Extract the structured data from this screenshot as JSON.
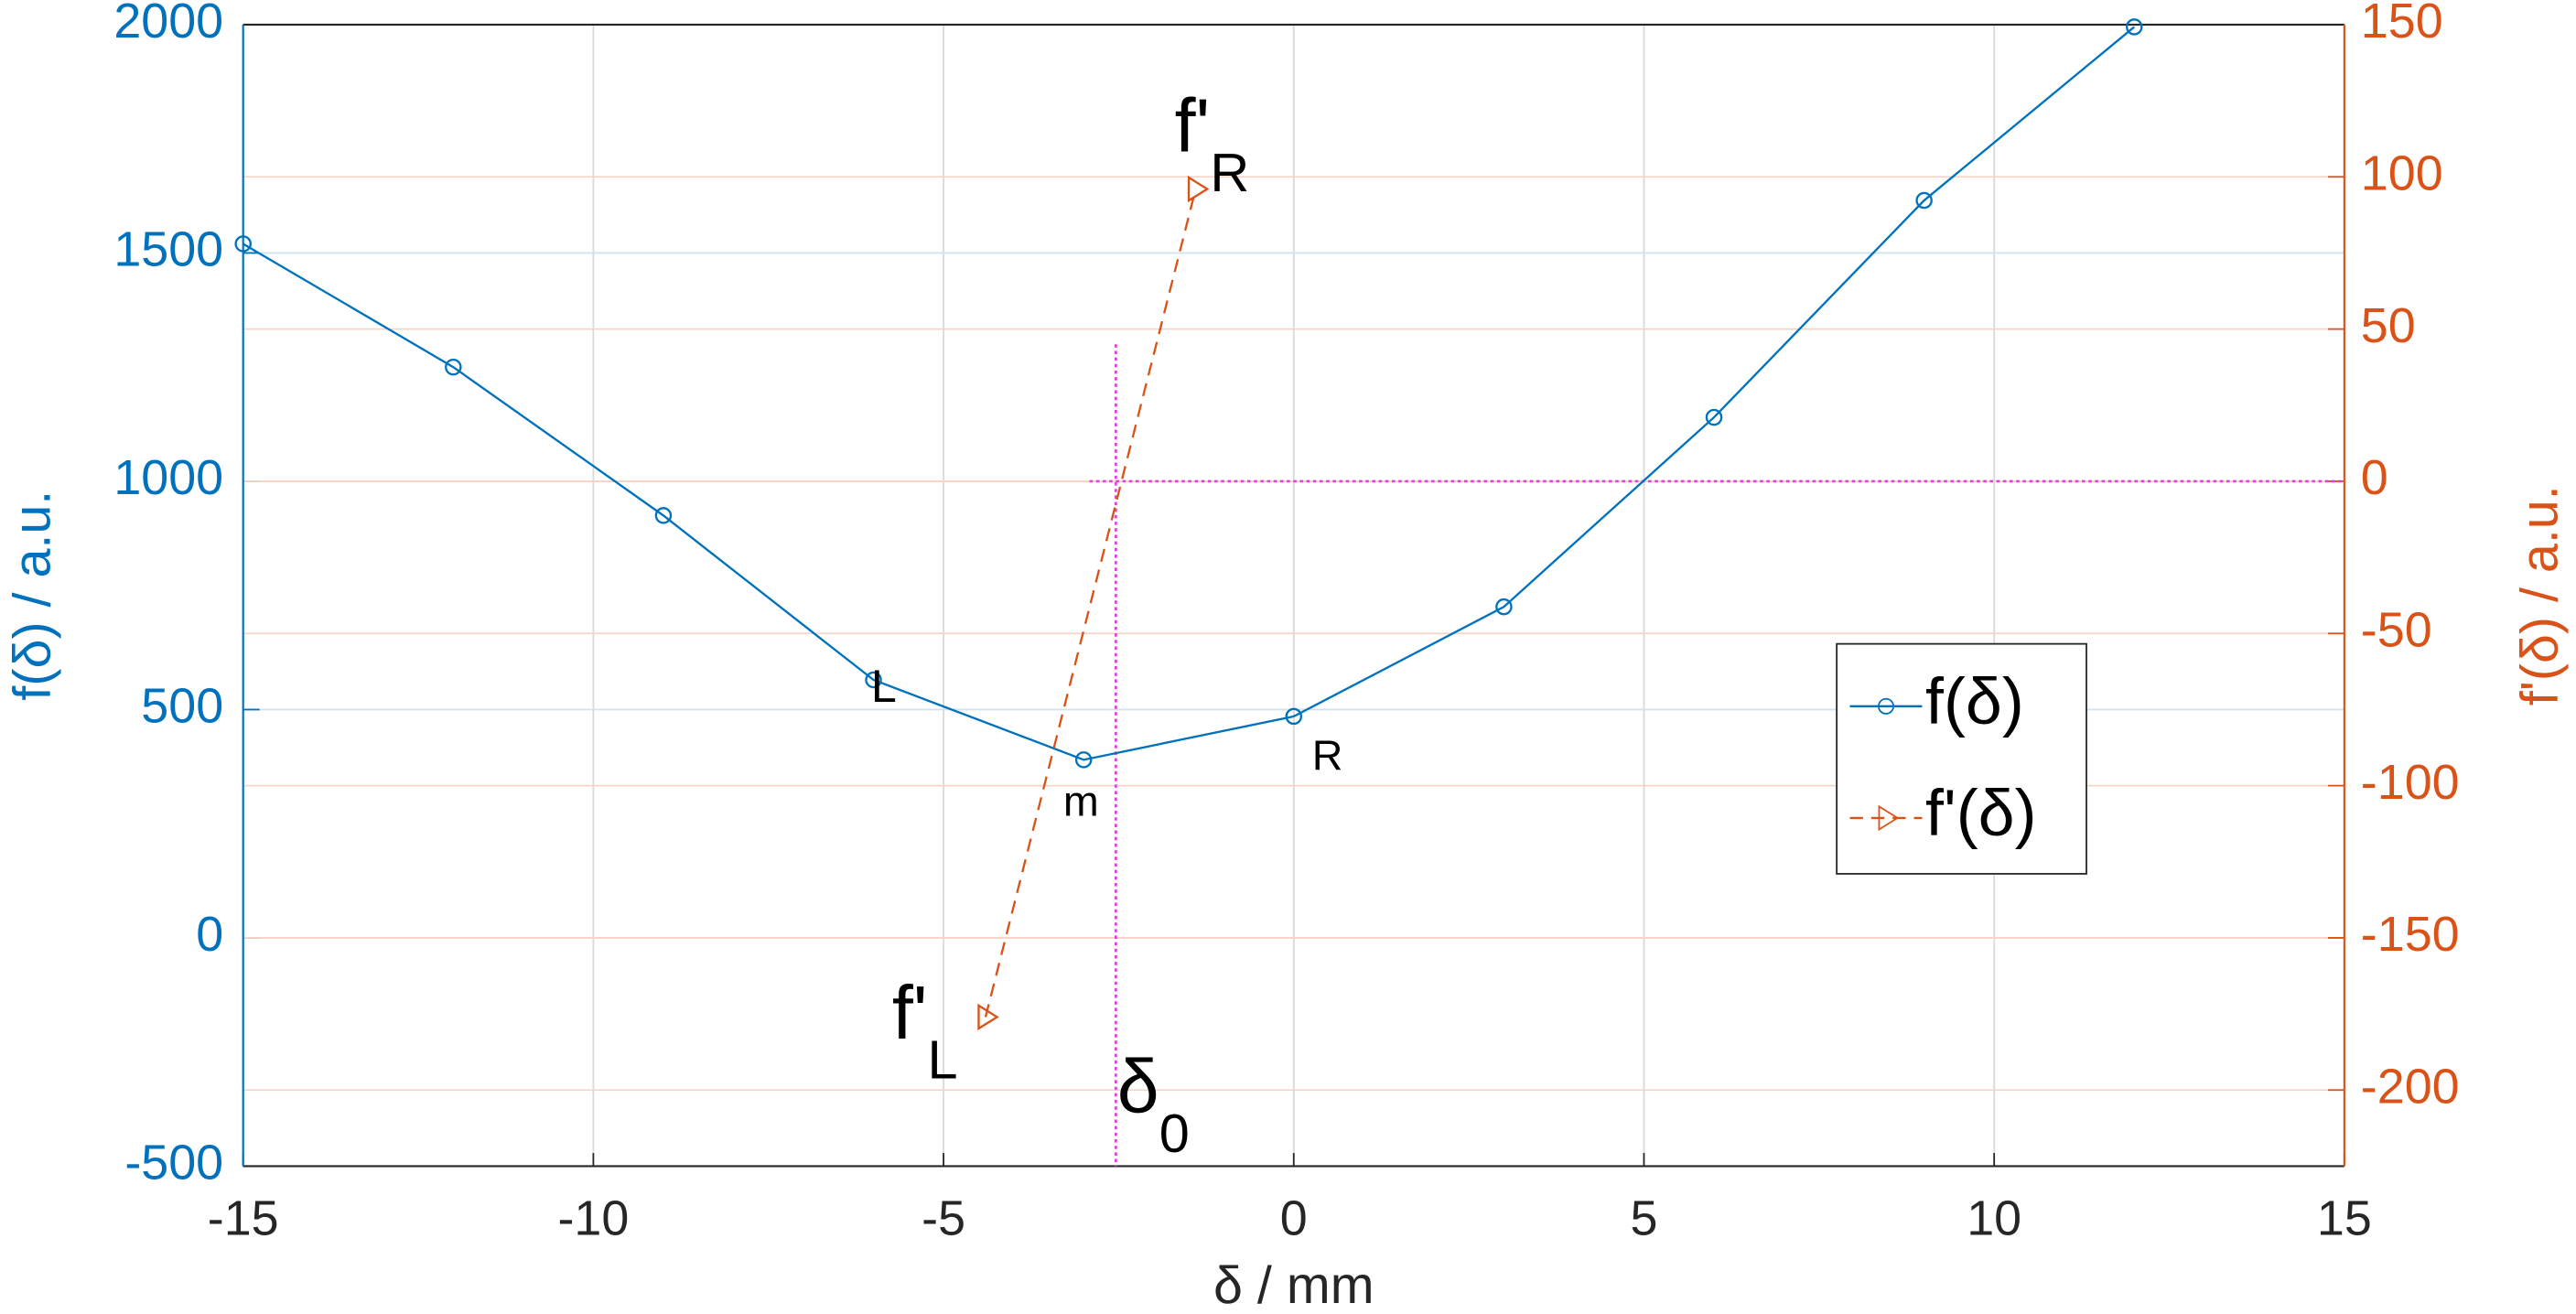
{
  "chart_data": {
    "type": "line",
    "xlabel": "δ / mm",
    "ylabel": "f(δ) / a.u.",
    "y2label": "f'(δ) / a.u.",
    "xlim": [
      -15,
      15
    ],
    "xticks": [
      -15,
      -10,
      -5,
      0,
      5,
      10,
      15
    ],
    "ylim": [
      -500,
      2000
    ],
    "yticks": [
      -500,
      0,
      500,
      1000,
      1500,
      2000
    ],
    "y2lim": [
      -225,
      150
    ],
    "y2ticks": [
      -200,
      -150,
      -100,
      -50,
      0,
      50,
      100,
      150
    ],
    "grid": true,
    "legend": "right",
    "series": [
      {
        "name": "f(δ)",
        "color": "#0072bd",
        "marker": "circle",
        "x": [
          -15,
          -12,
          -9,
          -6,
          -3,
          0,
          3,
          6,
          9,
          12
        ],
        "values": [
          1520,
          1250,
          925,
          565,
          390,
          485,
          725,
          1140,
          1615,
          1995
        ]
      },
      {
        "name": "f'(δ)",
        "color": "#d95319",
        "marker": "triangle",
        "axis": "y2",
        "x": [
          -4.4,
          -1.4
        ],
        "values": [
          -176,
          96
        ]
      }
    ],
    "crosshair": {
      "color": "#e040e0",
      "x": -2.54,
      "y2": 0,
      "y2_top": 45
    },
    "annotations": [
      {
        "text": "L"
      },
      {
        "text": "m"
      },
      {
        "text": "R"
      },
      {
        "text": "f'",
        "sub": "R"
      },
      {
        "text": "f'",
        "sub": "L"
      },
      {
        "text": "δ",
        "sub": "0"
      }
    ]
  }
}
